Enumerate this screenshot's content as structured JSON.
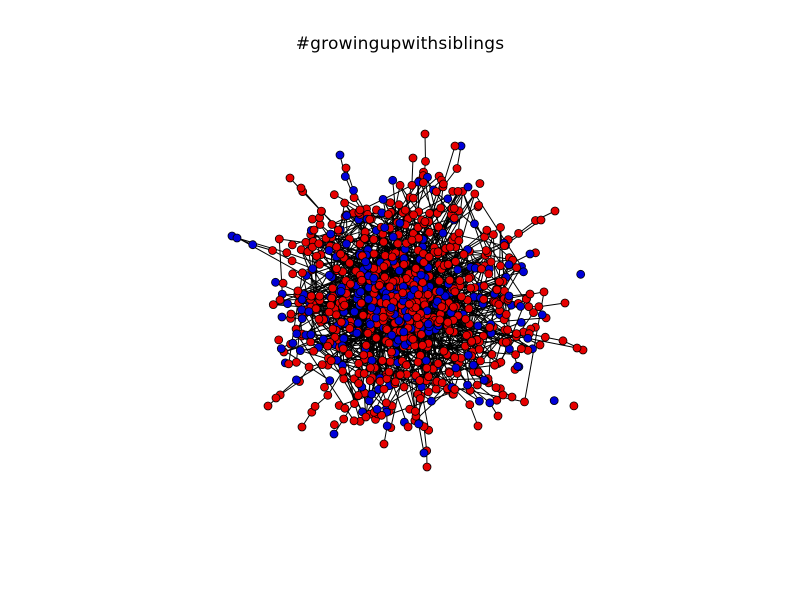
{
  "title": "#growingupwithsiblings",
  "colors": {
    "background": "#ffffff",
    "edge": "#000000",
    "node_outline": "#000000",
    "group_red": "#e60000",
    "group_blue": "#0000d8"
  },
  "graph": {
    "layout": "force-directed cluster",
    "node_groups": [
      "red",
      "blue"
    ],
    "node_shape": "circle"
  }
}
